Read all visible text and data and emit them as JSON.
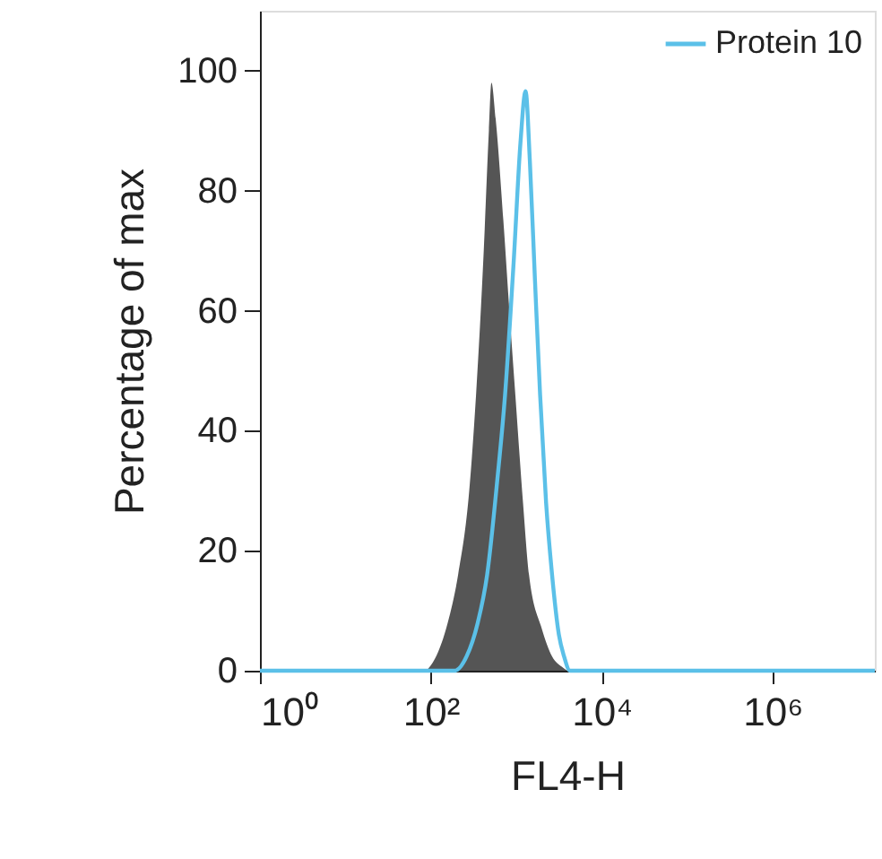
{
  "chart_data": {
    "type": "line",
    "xlabel": "FL4-H",
    "ylabel": "Percentage of max",
    "log": "x",
    "xlim": [
      1,
      15800000
    ],
    "ylim": [
      0,
      110
    ],
    "xticks": [
      {
        "value": 1,
        "label": "10⁰"
      },
      {
        "value": 100,
        "label": "10²"
      },
      {
        "value": 10000,
        "label": "10⁴"
      },
      {
        "value": 1000000,
        "label": "10⁶"
      }
    ],
    "yticks": [
      0,
      20,
      40,
      60,
      80,
      100
    ],
    "grid": false,
    "legend": "top right",
    "series": [
      {
        "type": "area",
        "color": "#555555",
        "x": [
          89,
          112,
          158,
          209,
          282,
          339,
          417,
          479,
          513,
          575,
          708,
          832,
          977,
          1202,
          1413,
          1995,
          2630,
          3548,
          3981
        ],
        "values": [
          0,
          2,
          8,
          16,
          30,
          46,
          70,
          90,
          98,
          92,
          75,
          60,
          46,
          28,
          16,
          7,
          2.4,
          0.5,
          0
        ]
      },
      {
        "type": "line",
        "name": "Protein 10",
        "color": "#5bc0e8",
        "x": [
          1,
          191,
          263,
          355,
          457,
          603,
          741,
          933,
          1122,
          1288,
          1445,
          1660,
          1905,
          2239,
          2630,
          3162,
          3631,
          4266,
          15800000
        ],
        "values": [
          0,
          0,
          2.4,
          8,
          16,
          32,
          46,
          68,
          88,
          96.6,
          85,
          65,
          46,
          28,
          16,
          6,
          2.4,
          0,
          0
        ]
      }
    ]
  }
}
